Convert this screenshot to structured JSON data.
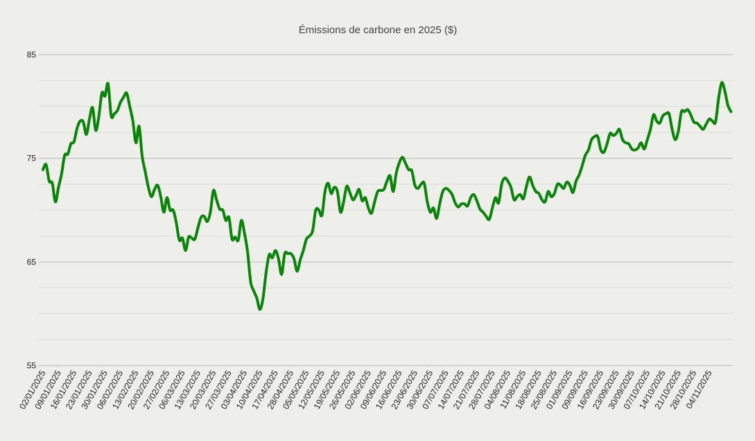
{
  "chart_data": {
    "type": "line",
    "title": "Émissions de carbone en 2025 ($)",
    "xlabel": "",
    "ylabel": "",
    "ylim": [
      55,
      85
    ],
    "yticks": [
      55,
      65,
      75,
      85
    ],
    "grid": true,
    "legend": "none",
    "colors": {
      "line": "#0a850a",
      "background": "#eeeeea",
      "grid_major": "#b8b8b4",
      "grid_minor": "#dcdcd8"
    },
    "xticks": [
      "02/01/2025",
      "09/01/2025",
      "16/01/2025",
      "23/01/2025",
      "30/01/2025",
      "06/02/2025",
      "13/02/2025",
      "20/02/2025",
      "27/02/2025",
      "06/03/2025",
      "13/03/2025",
      "20/03/2025",
      "27/03/2025",
      "03/04/2025",
      "10/04/2025",
      "17/04/2025",
      "28/04/2025",
      "05/05/2025",
      "12/05/2025",
      "19/05/2025",
      "26/05/2025",
      "02/06/2025",
      "09/06/2025",
      "16/06/2025",
      "23/06/2025",
      "30/06/2025",
      "07/07/2025",
      "14/07/2025",
      "21/07/2025",
      "28/07/2025",
      "04/08/2025",
      "11/08/2025",
      "18/08/2025",
      "25/08/2025",
      "01/09/2025",
      "09/09/2025",
      "16/09/2025",
      "23/09/2025",
      "30/09/2025",
      "07/10/2025",
      "14/10/2025",
      "21/10/2025",
      "28/10/2025",
      "04/11/2025"
    ],
    "series": [
      {
        "x": [
          "02/01/2025",
          "03/01/2025",
          "06/01/2025",
          "07/01/2025",
          "08/01/2025",
          "09/01/2025",
          "10/01/2025",
          "13/01/2025",
          "14/01/2025",
          "15/01/2025",
          "16/01/2025",
          "17/01/2025",
          "20/01/2025",
          "21/01/2025",
          "22/01/2025",
          "23/01/2025",
          "24/01/2025",
          "27/01/2025",
          "28/01/2025",
          "29/01/2025",
          "30/01/2025",
          "31/01/2025",
          "03/02/2025",
          "04/02/2025",
          "05/02/2025",
          "06/02/2025",
          "07/02/2025",
          "10/02/2025",
          "11/02/2025",
          "12/02/2025",
          "13/02/2025",
          "14/02/2025",
          "17/02/2025",
          "18/02/2025",
          "19/02/2025",
          "20/02/2025",
          "21/02/2025",
          "24/02/2025",
          "25/02/2025",
          "26/02/2025",
          "27/02/2025",
          "28/02/2025",
          "03/03/2025",
          "04/03/2025",
          "05/03/2025",
          "06/03/2025",
          "07/03/2025",
          "10/03/2025",
          "11/03/2025",
          "12/03/2025",
          "13/03/2025",
          "14/03/2025",
          "17/03/2025",
          "18/03/2025",
          "19/03/2025",
          "20/03/2025",
          "21/03/2025",
          "24/03/2025",
          "25/03/2025",
          "26/03/2025",
          "27/03/2025",
          "28/03/2025",
          "31/03/2025",
          "01/04/2025",
          "02/04/2025",
          "03/04/2025",
          "04/04/2025",
          "07/04/2025",
          "08/04/2025",
          "09/04/2025",
          "10/04/2025",
          "11/04/2025",
          "14/04/2025",
          "15/04/2025",
          "16/04/2025",
          "17/04/2025",
          "22/04/2025",
          "23/04/2025",
          "24/04/2025",
          "25/04/2025",
          "28/04/2025",
          "29/04/2025",
          "30/04/2025",
          "01/05/2025",
          "02/05/2025",
          "05/05/2025",
          "06/05/2025",
          "07/05/2025",
          "08/05/2025",
          "09/05/2025",
          "12/05/2025",
          "13/05/2025",
          "14/05/2025",
          "15/05/2025",
          "16/05/2025",
          "19/05/2025",
          "20/05/2025",
          "21/05/2025",
          "22/05/2025",
          "23/05/2025",
          "26/05/2025",
          "27/05/2025",
          "28/05/2025",
          "29/05/2025",
          "30/05/2025",
          "02/06/2025",
          "03/06/2025",
          "04/06/2025",
          "05/06/2025",
          "06/06/2025",
          "09/06/2025",
          "10/06/2025",
          "11/06/2025",
          "12/06/2025",
          "13/06/2025",
          "16/06/2025",
          "17/06/2025",
          "18/06/2025",
          "19/06/2025",
          "20/06/2025",
          "23/06/2025",
          "24/06/2025",
          "25/06/2025",
          "26/06/2025",
          "27/06/2025",
          "30/06/2025",
          "01/07/2025",
          "02/07/2025",
          "03/07/2025",
          "04/07/2025",
          "07/07/2025",
          "08/07/2025",
          "09/07/2025",
          "10/07/2025",
          "11/07/2025",
          "14/07/2025",
          "15/07/2025",
          "16/07/2025",
          "17/07/2025",
          "18/07/2025",
          "21/07/2025",
          "22/07/2025",
          "23/07/2025",
          "24/07/2025",
          "25/07/2025",
          "28/07/2025",
          "29/07/2025",
          "30/07/2025",
          "31/07/2025",
          "01/08/2025",
          "04/08/2025",
          "05/08/2025",
          "06/08/2025",
          "07/08/2025",
          "08/08/2025",
          "11/08/2025",
          "12/08/2025",
          "13/08/2025",
          "14/08/2025",
          "15/08/2025",
          "18/08/2025",
          "19/08/2025",
          "20/08/2025",
          "21/08/2025",
          "22/08/2025",
          "25/08/2025",
          "26/08/2025",
          "27/08/2025",
          "28/08/2025",
          "29/08/2025",
          "01/09/2025",
          "02/09/2025",
          "03/09/2025",
          "04/09/2025",
          "05/09/2025",
          "09/09/2025",
          "10/09/2025",
          "11/09/2025",
          "12/09/2025",
          "15/09/2025",
          "16/09/2025",
          "17/09/2025",
          "18/09/2025",
          "19/09/2025",
          "22/09/2025",
          "23/09/2025",
          "24/09/2025",
          "25/09/2025",
          "26/09/2025",
          "29/09/2025",
          "30/09/2025",
          "01/10/2025",
          "02/10/2025",
          "03/10/2025",
          "06/10/2025",
          "07/10/2025",
          "08/10/2025",
          "09/10/2025",
          "10/10/2025",
          "13/10/2025",
          "14/10/2025",
          "15/10/2025",
          "16/10/2025",
          "17/10/2025",
          "20/10/2025",
          "21/10/2025",
          "22/10/2025",
          "23/10/2025",
          "24/10/2025",
          "27/10/2025",
          "28/10/2025",
          "29/10/2025",
          "30/10/2025",
          "31/10/2025",
          "03/11/2025",
          "04/11/2025",
          "05/11/2025",
          "06/11/2025",
          "07/11/2025",
          "10/11/2025",
          "11/11/2025",
          "12/11/2025",
          "13/11/2025"
        ],
        "values": [
          73.9,
          74.4,
          72.8,
          72.6,
          70.8,
          72.2,
          73.5,
          75.3,
          75.4,
          76.4,
          76.6,
          77.9,
          78.6,
          78.5,
          77.3,
          78.8,
          79.9,
          77.7,
          79.0,
          81.3,
          81.0,
          82.2,
          79.1,
          79.3,
          79.6,
          80.4,
          80.9,
          81.3,
          80.0,
          78.6,
          76.5,
          78.1,
          75.2,
          73.7,
          72.2,
          71.3,
          72.0,
          72.4,
          71.3,
          69.8,
          71.2,
          70.0,
          70.0,
          68.8,
          67.1,
          67.3,
          66.1,
          67.4,
          67.3,
          67.2,
          68.3,
          69.3,
          69.4,
          68.9,
          69.8,
          71.9,
          71.0,
          70.1,
          70.0,
          69.0,
          69.3,
          67.2,
          67.4,
          67.1,
          69.0,
          67.8,
          66.0,
          63.1,
          62.2,
          61.5,
          60.4,
          61.5,
          64.0,
          65.7,
          65.4,
          66.1,
          65.3,
          63.8,
          65.8,
          65.8,
          65.8,
          65.3,
          64.1,
          65.2,
          66.1,
          67.2,
          67.5,
          68.0,
          70.0,
          70.0,
          69.5,
          71.8,
          72.6,
          71.6,
          72.2,
          71.8,
          69.8,
          70.8,
          72.3,
          71.7,
          71.0,
          71.4,
          72.0,
          70.9,
          71.2,
          70.2,
          69.7,
          70.8,
          71.8,
          71.9,
          72.0,
          72.8,
          73.3,
          71.8,
          73.6,
          74.6,
          75.1,
          74.5,
          73.9,
          73.8,
          72.4,
          72.1,
          72.5,
          72.6,
          70.8,
          69.8,
          70.2,
          69.2,
          70.6,
          71.8,
          72.1,
          71.9,
          71.5,
          70.7,
          70.3,
          70.6,
          70.6,
          70.4,
          71.2,
          71.5,
          70.9,
          70.1,
          69.8,
          69.4,
          69.1,
          70.2,
          71.2,
          70.7,
          72.5,
          73.1,
          72.8,
          72.2,
          71.0,
          71.3,
          71.5,
          71.1,
          72.3,
          73.2,
          72.4,
          71.8,
          71.6,
          71.0,
          70.8,
          71.8,
          71.3,
          71.6,
          72.5,
          72.4,
          72.1,
          72.7,
          72.4,
          71.7,
          72.8,
          73.4,
          74.3,
          75.3,
          75.8,
          76.8,
          77.1,
          77.1,
          75.8,
          75.6,
          76.4,
          77.4,
          77.2,
          77.4,
          77.8,
          76.8,
          76.5,
          76.4,
          75.9,
          75.8,
          76.0,
          76.5,
          75.9,
          76.8,
          77.8,
          79.2,
          78.6,
          78.4,
          79.1,
          79.3,
          79.3,
          77.8,
          76.8,
          77.6,
          79.5,
          79.5,
          79.7,
          79.2,
          78.5,
          78.4,
          78.1,
          77.8,
          78.3,
          78.8,
          78.6,
          78.5,
          80.8,
          82.3,
          81.5,
          80.1,
          79.5
        ]
      }
    ]
  }
}
